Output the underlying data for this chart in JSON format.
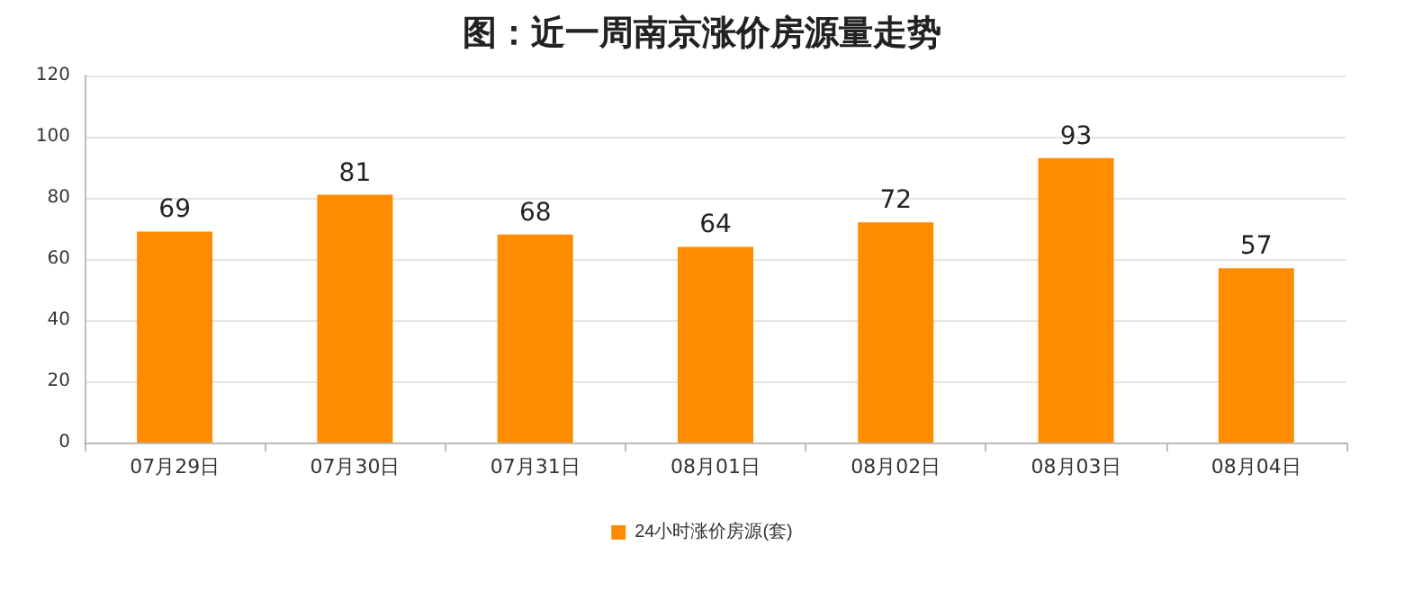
{
  "chart_data": {
    "type": "bar",
    "title": "图：近一周南京涨价房源量走势",
    "categories": [
      "07月29日",
      "07月30日",
      "07月31日",
      "08月01日",
      "08月02日",
      "08月03日",
      "08月04日"
    ],
    "series": [
      {
        "name": "24小时涨价房源(套)",
        "color": "#ff8c00",
        "values": [
          69,
          81,
          68,
          64,
          72,
          93,
          57
        ]
      }
    ],
    "ylim": [
      0,
      120
    ],
    "yticks": [
      0,
      20,
      40,
      60,
      80,
      100,
      120
    ],
    "grid": "y",
    "legend": "bottom",
    "data_labels": true
  }
}
